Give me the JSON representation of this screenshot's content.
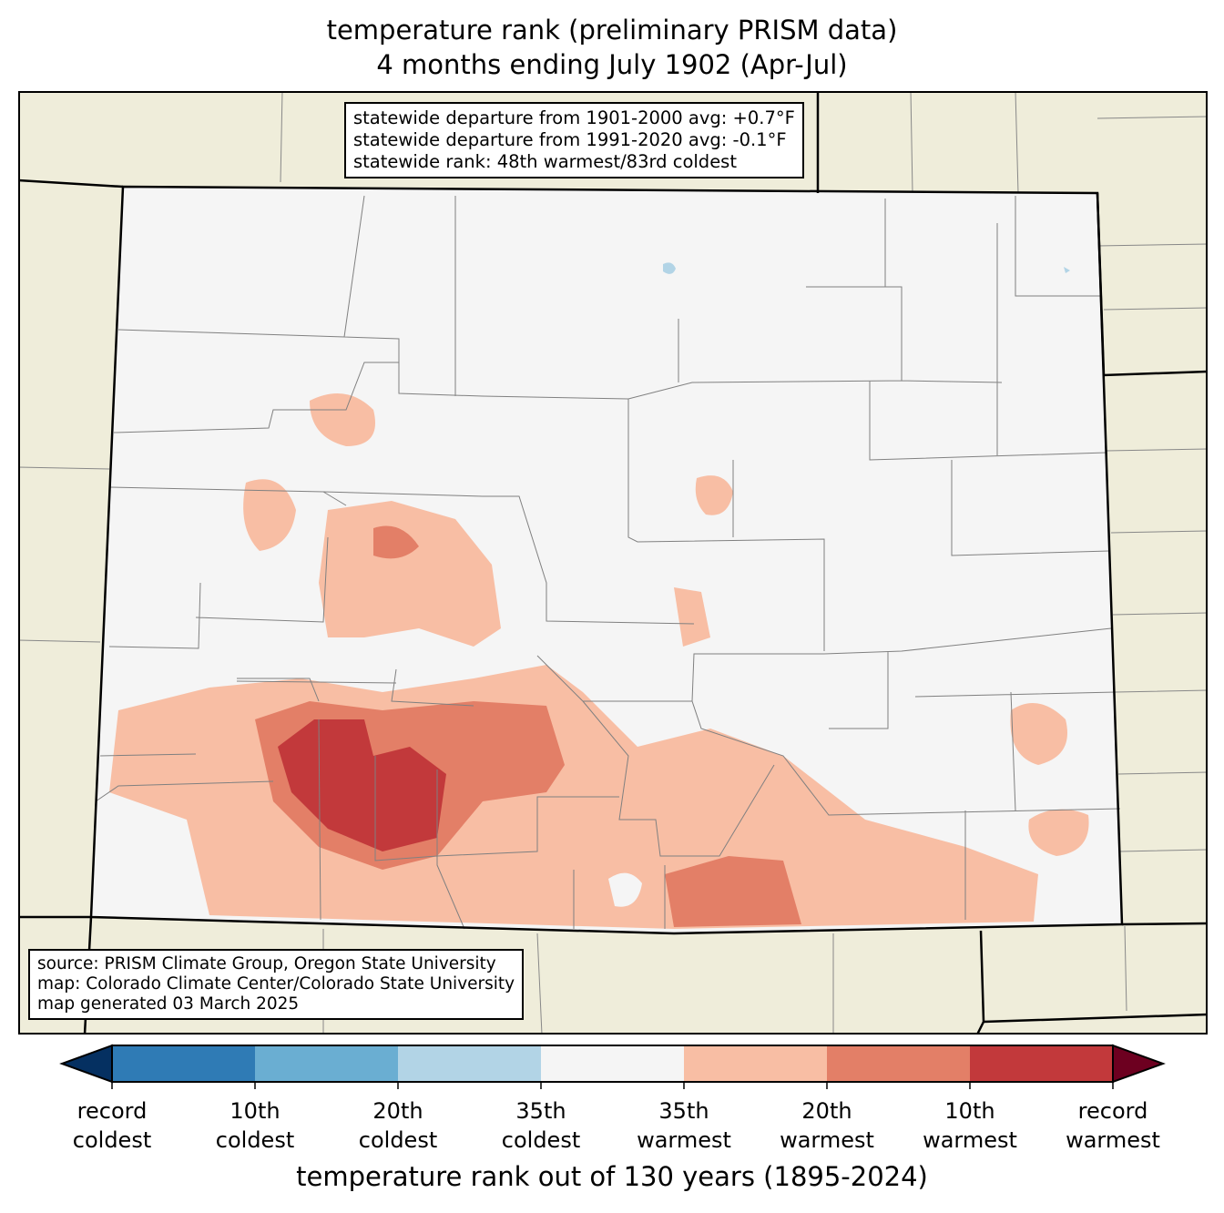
{
  "title": {
    "line1": "temperature rank (preliminary PRISM data)",
    "line2": "4 months ending July 1902 (Apr-Jul)"
  },
  "stats_box": {
    "line1": "statewide departure from 1901-2000 avg: +0.7°F",
    "line2": "statewide departure from 1991-2020 avg: -0.1°F",
    "line3": "statewide rank: 48th warmest/83rd coldest"
  },
  "source_box": {
    "line1": "source: PRISM Climate Group, Oregon State University",
    "line2": "map: Colorado Climate Center/Colorado State University",
    "line3": "map generated 03 March 2025"
  },
  "colorbar": {
    "title": "temperature rank out of 130 years (1895-2024)",
    "colors": [
      "#053061",
      "#2f7bb5",
      "#6aaed2",
      "#b2d4e6",
      "#f5f5f5",
      "#f8bea4",
      "#e37f67",
      "#c2393b",
      "#6d0020"
    ],
    "ticks": [
      {
        "l1": "record",
        "l2": "coldest"
      },
      {
        "l1": "10th",
        "l2": "coldest"
      },
      {
        "l1": "20th",
        "l2": "coldest"
      },
      {
        "l1": "35th",
        "l2": "coldest"
      },
      {
        "l1": "35th",
        "l2": "warmest"
      },
      {
        "l1": "20th",
        "l2": "warmest"
      },
      {
        "l1": "10th",
        "l2": "warmest"
      },
      {
        "l1": "record",
        "l2": "warmest"
      }
    ]
  }
}
